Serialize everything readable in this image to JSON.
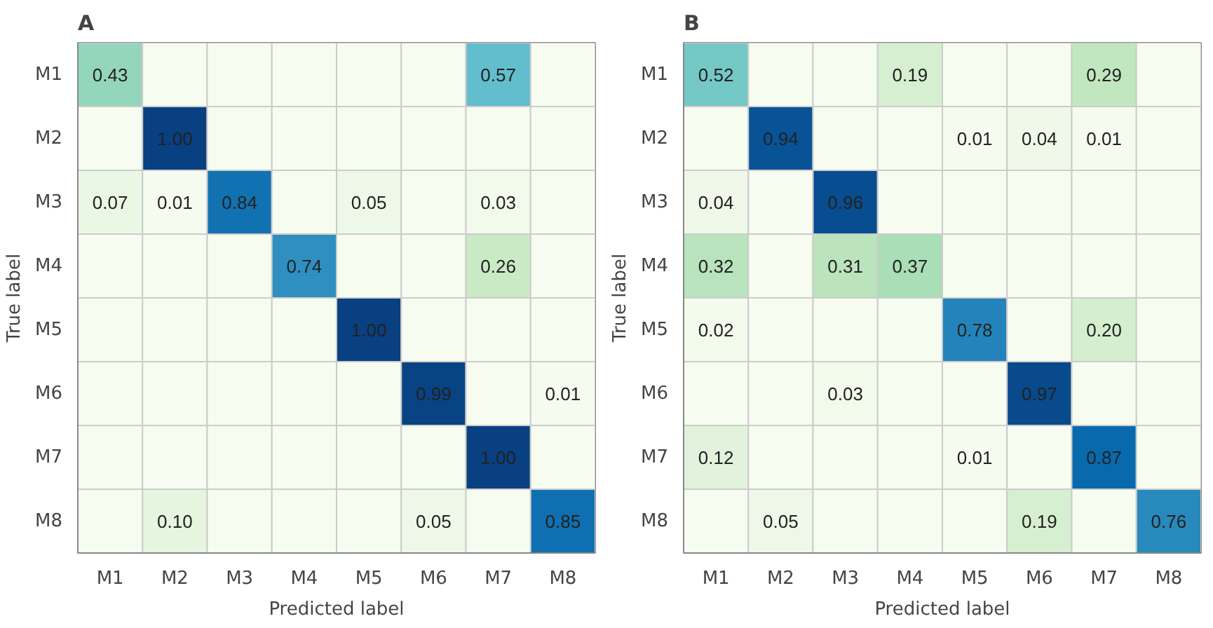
{
  "chart_data": [
    {
      "type": "heatmap",
      "title": "A",
      "xlabel": "Predicted label",
      "ylabel": "True label",
      "categories": [
        "M1",
        "M2",
        "M3",
        "M4",
        "M5",
        "M6",
        "M7",
        "M8"
      ],
      "y_categories": [
        "M1",
        "M2",
        "M3",
        "M4",
        "M5",
        "M6",
        "M7",
        "M8"
      ],
      "cells": [
        [
          0.43,
          null,
          null,
          null,
          null,
          null,
          0.57,
          null
        ],
        [
          null,
          1.0,
          null,
          null,
          null,
          null,
          null,
          null
        ],
        [
          0.07,
          0.01,
          0.84,
          null,
          0.05,
          null,
          0.03,
          null
        ],
        [
          null,
          null,
          null,
          0.74,
          null,
          null,
          0.26,
          null
        ],
        [
          null,
          null,
          null,
          null,
          1.0,
          null,
          null,
          null
        ],
        [
          null,
          null,
          null,
          null,
          null,
          0.99,
          null,
          0.01
        ],
        [
          null,
          null,
          null,
          null,
          null,
          null,
          1.0,
          null
        ],
        [
          null,
          0.1,
          null,
          null,
          null,
          0.05,
          null,
          0.85
        ]
      ],
      "cell_labels": [
        [
          "0.43",
          null,
          null,
          null,
          null,
          null,
          "0.57",
          null
        ],
        [
          null,
          "1.00",
          null,
          null,
          null,
          null,
          null,
          null
        ],
        [
          "0.07",
          "0.01",
          "0.84",
          null,
          "0.05",
          null,
          "0.03",
          null
        ],
        [
          null,
          null,
          null,
          "0.74",
          null,
          null,
          "0.26",
          null
        ],
        [
          null,
          null,
          null,
          null,
          "1.00",
          null,
          null,
          null
        ],
        [
          null,
          null,
          null,
          null,
          null,
          "0.99",
          null,
          "0.01"
        ],
        [
          null,
          null,
          null,
          null,
          null,
          null,
          "1.00",
          null
        ],
        [
          null,
          "0.10",
          null,
          null,
          null,
          "0.05",
          null,
          "0.85"
        ]
      ]
    },
    {
      "type": "heatmap",
      "title": "B",
      "xlabel": "Predicted label",
      "ylabel": "True label",
      "categories": [
        "M1",
        "M2",
        "M3",
        "M4",
        "M5",
        "M6",
        "M7",
        "M8"
      ],
      "y_categories": [
        "M1",
        "M2",
        "M3",
        "M4",
        "M5",
        "M6",
        "M7",
        "M8"
      ],
      "cells": [
        [
          0.52,
          null,
          null,
          0.19,
          null,
          null,
          0.29,
          null
        ],
        [
          null,
          0.94,
          null,
          null,
          0.01,
          0.04,
          0.01,
          null
        ],
        [
          0.04,
          null,
          0.96,
          null,
          null,
          null,
          null,
          null
        ],
        [
          0.32,
          null,
          0.31,
          0.37,
          null,
          null,
          null,
          null
        ],
        [
          0.02,
          null,
          null,
          null,
          0.78,
          null,
          0.2,
          null
        ],
        [
          null,
          null,
          0.03,
          null,
          null,
          0.97,
          null,
          null
        ],
        [
          0.12,
          null,
          null,
          null,
          0.01,
          null,
          0.87,
          null
        ],
        [
          null,
          0.05,
          null,
          null,
          null,
          0.19,
          null,
          0.76
        ]
      ],
      "cell_labels": [
        [
          "0.52",
          null,
          null,
          "0.19",
          null,
          null,
          "0.29",
          null
        ],
        [
          null,
          "0.94",
          null,
          null,
          "0.01",
          "0.04",
          "0.01",
          null
        ],
        [
          "0.04",
          null,
          "0.96",
          null,
          null,
          null,
          null,
          null
        ],
        [
          "0.32",
          null,
          "0.31",
          "0.37",
          null,
          null,
          null,
          null
        ],
        [
          "0.02",
          null,
          null,
          null,
          "0.78",
          null,
          "0.20",
          null
        ],
        [
          null,
          null,
          "0.03",
          null,
          null,
          "0.97",
          null,
          null
        ],
        [
          "0.12",
          null,
          null,
          null,
          "0.01",
          null,
          "0.87",
          null
        ],
        [
          null,
          "0.05",
          null,
          null,
          null,
          "0.19",
          null,
          "0.76"
        ]
      ]
    }
  ]
}
